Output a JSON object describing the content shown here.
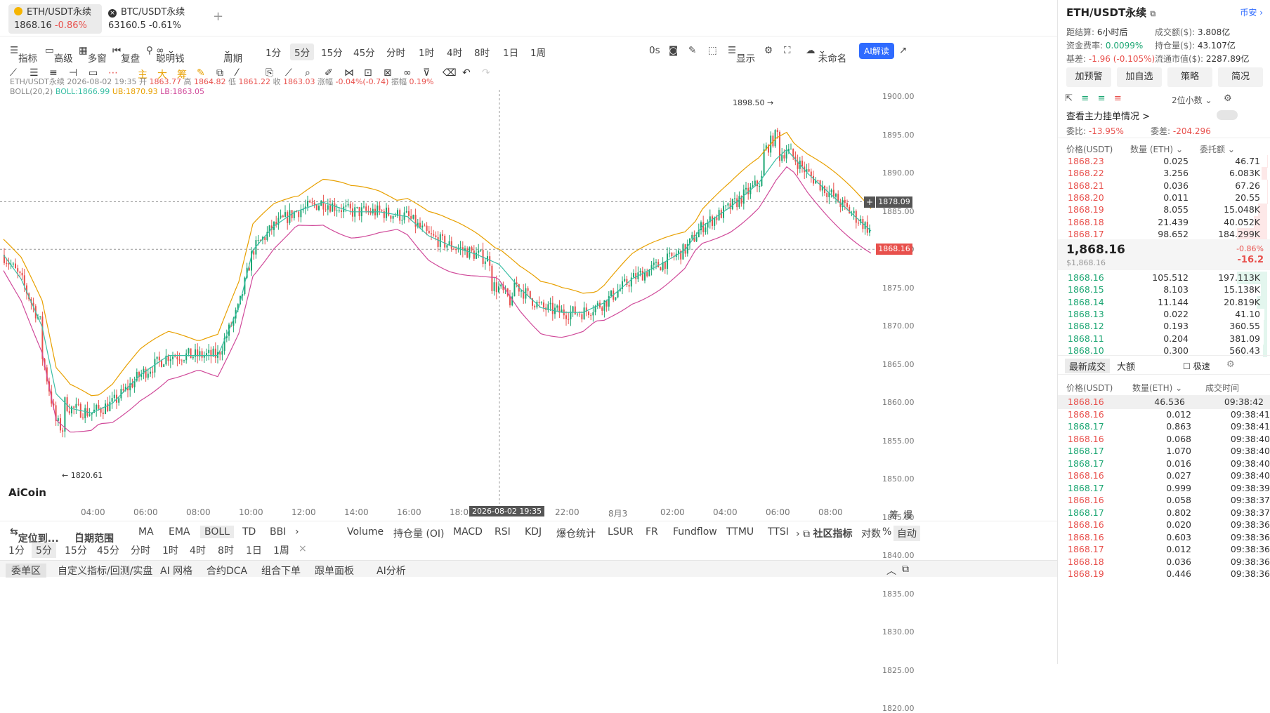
{
  "tabs": [
    {
      "name": "ETH/USDT永续",
      "price": "1868.16",
      "change": "-0.86%"
    },
    {
      "name": "BTC/USDT永续",
      "price": "63160.5",
      "change": "-0.61%"
    }
  ],
  "tab_add": "+",
  "toolbar1": {
    "items": [
      "指标",
      "高级",
      "多窗",
      "复盘",
      "聪明钱",
      "周期",
      "1分",
      "5分",
      "15分",
      "45分",
      "分时",
      "1时",
      "4时",
      "8时",
      "1日",
      "1周",
      "0s",
      "显示",
      "未命名",
      "AI解读"
    ],
    "active_tf": "5分"
  },
  "chart_info": {
    "line1": "ETH/USDT永续  2026-08-02 19:35  开",
    "open": "1863.77",
    "high_l": "高",
    "high": "1864.82",
    "low_l": "低",
    "low": "1861.22",
    "close_l": "收",
    "close": "1863.03",
    "chg_l": "涨幅",
    "chg": "-0.04%(-0.74)",
    "amp_l": "振幅",
    "amp": "0.19%",
    "boll_l": "BOLL(20,2)",
    "boll": "BOLL:1866.99",
    "ub": "UB:1870.93",
    "lb": "LB:1863.05"
  },
  "yticks": [
    "1900.00",
    "1895.00",
    "1890.00",
    "1885.00",
    "1880.00",
    "1875.00",
    "1870.00",
    "1865.00",
    "1860.00",
    "1855.00",
    "1850.00",
    "1845.00",
    "1840.00",
    "1835.00",
    "1830.00",
    "1825.00",
    "1820.00"
  ],
  "price_marks": {
    "crosshair": "1878.09",
    "last": "1868.16",
    "high": "1898.50 →",
    "low": "← 1820.61"
  },
  "xticks": [
    "04:00",
    "06:00",
    "08:00",
    "10:00",
    "12:00",
    "14:00",
    "16:00",
    "18:00",
    "22:00",
    "8月3",
    "02:00",
    "04:00",
    "06:00",
    "08:00"
  ],
  "crosshair_time": "2026-08-02 19:35",
  "logo": "AiCoin",
  "axis_corner": [
    "筹",
    "爆"
  ],
  "bottom1": {
    "locate": "定位到...",
    "range": "日期范围",
    "inds": [
      "MA",
      "EMA",
      "BOLL",
      "TD",
      "BBI"
    ],
    "subs": [
      "Volume",
      "持仓量 (OI)",
      "MACD",
      "RSI",
      "KDJ",
      "爆仓统计",
      "LSUR",
      "FR",
      "Fundflow",
      "TTMU",
      "TTSI"
    ],
    "community": "社区指标",
    "right": [
      "对数",
      "%",
      "自动"
    ]
  },
  "bottom2": [
    "1分",
    "5分",
    "15分",
    "45分",
    "分时",
    "1时",
    "4时",
    "8时",
    "1日",
    "1周",
    "×"
  ],
  "bottom3": [
    "委单区",
    "自定义指标/回测/实盘",
    "AI 网格",
    "合约DCA",
    "组合下单",
    "跟单面板",
    "AI分析"
  ],
  "right": {
    "title": "ETH/USDT永续",
    "exchange": "币安",
    "stats": [
      [
        "距结算:",
        "6小时后"
      ],
      [
        "成交额($):",
        "3.808亿"
      ],
      [
        "资金费率:",
        "0.0099%"
      ],
      [
        "持仓量($):",
        "43.107亿"
      ],
      [
        "基差:",
        "-1.96 (-0.105%)"
      ],
      [
        "流通市值($):",
        "2287.89亿"
      ]
    ],
    "buttons": [
      "加预警",
      "加自选",
      "策略",
      "简况"
    ],
    "decimals": "2位小数",
    "orderbook_link": "查看主力挂单情况 >",
    "ratio": [
      "委比:",
      "-13.95%",
      "委差:",
      "-204.296"
    ],
    "ob_head": [
      "价格(USDT)",
      "数量 (ETH)",
      "委托额"
    ],
    "asks": [
      [
        "1868.23",
        "0.025",
        "46.71",
        0.01
      ],
      [
        "1868.22",
        "3.256",
        "6.083K",
        0.17
      ],
      [
        "1868.21",
        "0.036",
        "67.26",
        0.01
      ],
      [
        "1868.20",
        "0.011",
        "20.55",
        0.01
      ],
      [
        "1868.19",
        "8.055",
        "15.048K",
        0.28
      ],
      [
        "1868.18",
        "21.439",
        "40.052K",
        0.42
      ],
      [
        "1868.17",
        "98.652",
        "184.299K",
        0.95
      ]
    ],
    "mid_price": "1,868.16",
    "mid_usd": "$1,868.16",
    "mid_chg": "-0.86%",
    "mid_abs": "-16.2",
    "bids": [
      [
        "1868.16",
        "105.512",
        "197.113K",
        0.95
      ],
      [
        "1868.15",
        "8.103",
        "15.138K",
        0.2
      ],
      [
        "1868.14",
        "11.144",
        "20.819K",
        0.33
      ],
      [
        "1868.13",
        "0.022",
        "41.10",
        0.08
      ],
      [
        "1868.12",
        "0.193",
        "360.55",
        0.12
      ],
      [
        "1868.11",
        "0.204",
        "381.09",
        0.12
      ],
      [
        "1868.10",
        "0.300",
        "560.43",
        0.14
      ]
    ],
    "trade_tabs": [
      "最新成交",
      "大额",
      "极速"
    ],
    "tr_head": [
      "价格(USDT)",
      "数量(ETH)",
      "成交时间"
    ],
    "trades": [
      [
        "1868.16",
        "46.536",
        "09:38:42",
        "r"
      ],
      [
        "1868.16",
        "0.012",
        "09:38:41",
        "r"
      ],
      [
        "1868.17",
        "0.863",
        "09:38:41",
        "g"
      ],
      [
        "1868.16",
        "0.068",
        "09:38:40",
        "r"
      ],
      [
        "1868.17",
        "1.070",
        "09:38:40",
        "g"
      ],
      [
        "1868.17",
        "0.016",
        "09:38:40",
        "g"
      ],
      [
        "1868.16",
        "0.027",
        "09:38:40",
        "r"
      ],
      [
        "1868.17",
        "0.999",
        "09:38:39",
        "g"
      ],
      [
        "1868.16",
        "0.058",
        "09:38:37",
        "r"
      ],
      [
        "1868.17",
        "0.802",
        "09:38:37",
        "g"
      ],
      [
        "1868.16",
        "0.020",
        "09:38:36",
        "r"
      ],
      [
        "1868.16",
        "0.603",
        "09:38:36",
        "r"
      ],
      [
        "1868.17",
        "0.012",
        "09:38:36",
        "r"
      ],
      [
        "1868.18",
        "0.036",
        "09:38:36",
        "r"
      ],
      [
        "1868.19",
        "0.446",
        "09:38:36",
        "r"
      ]
    ]
  }
}
